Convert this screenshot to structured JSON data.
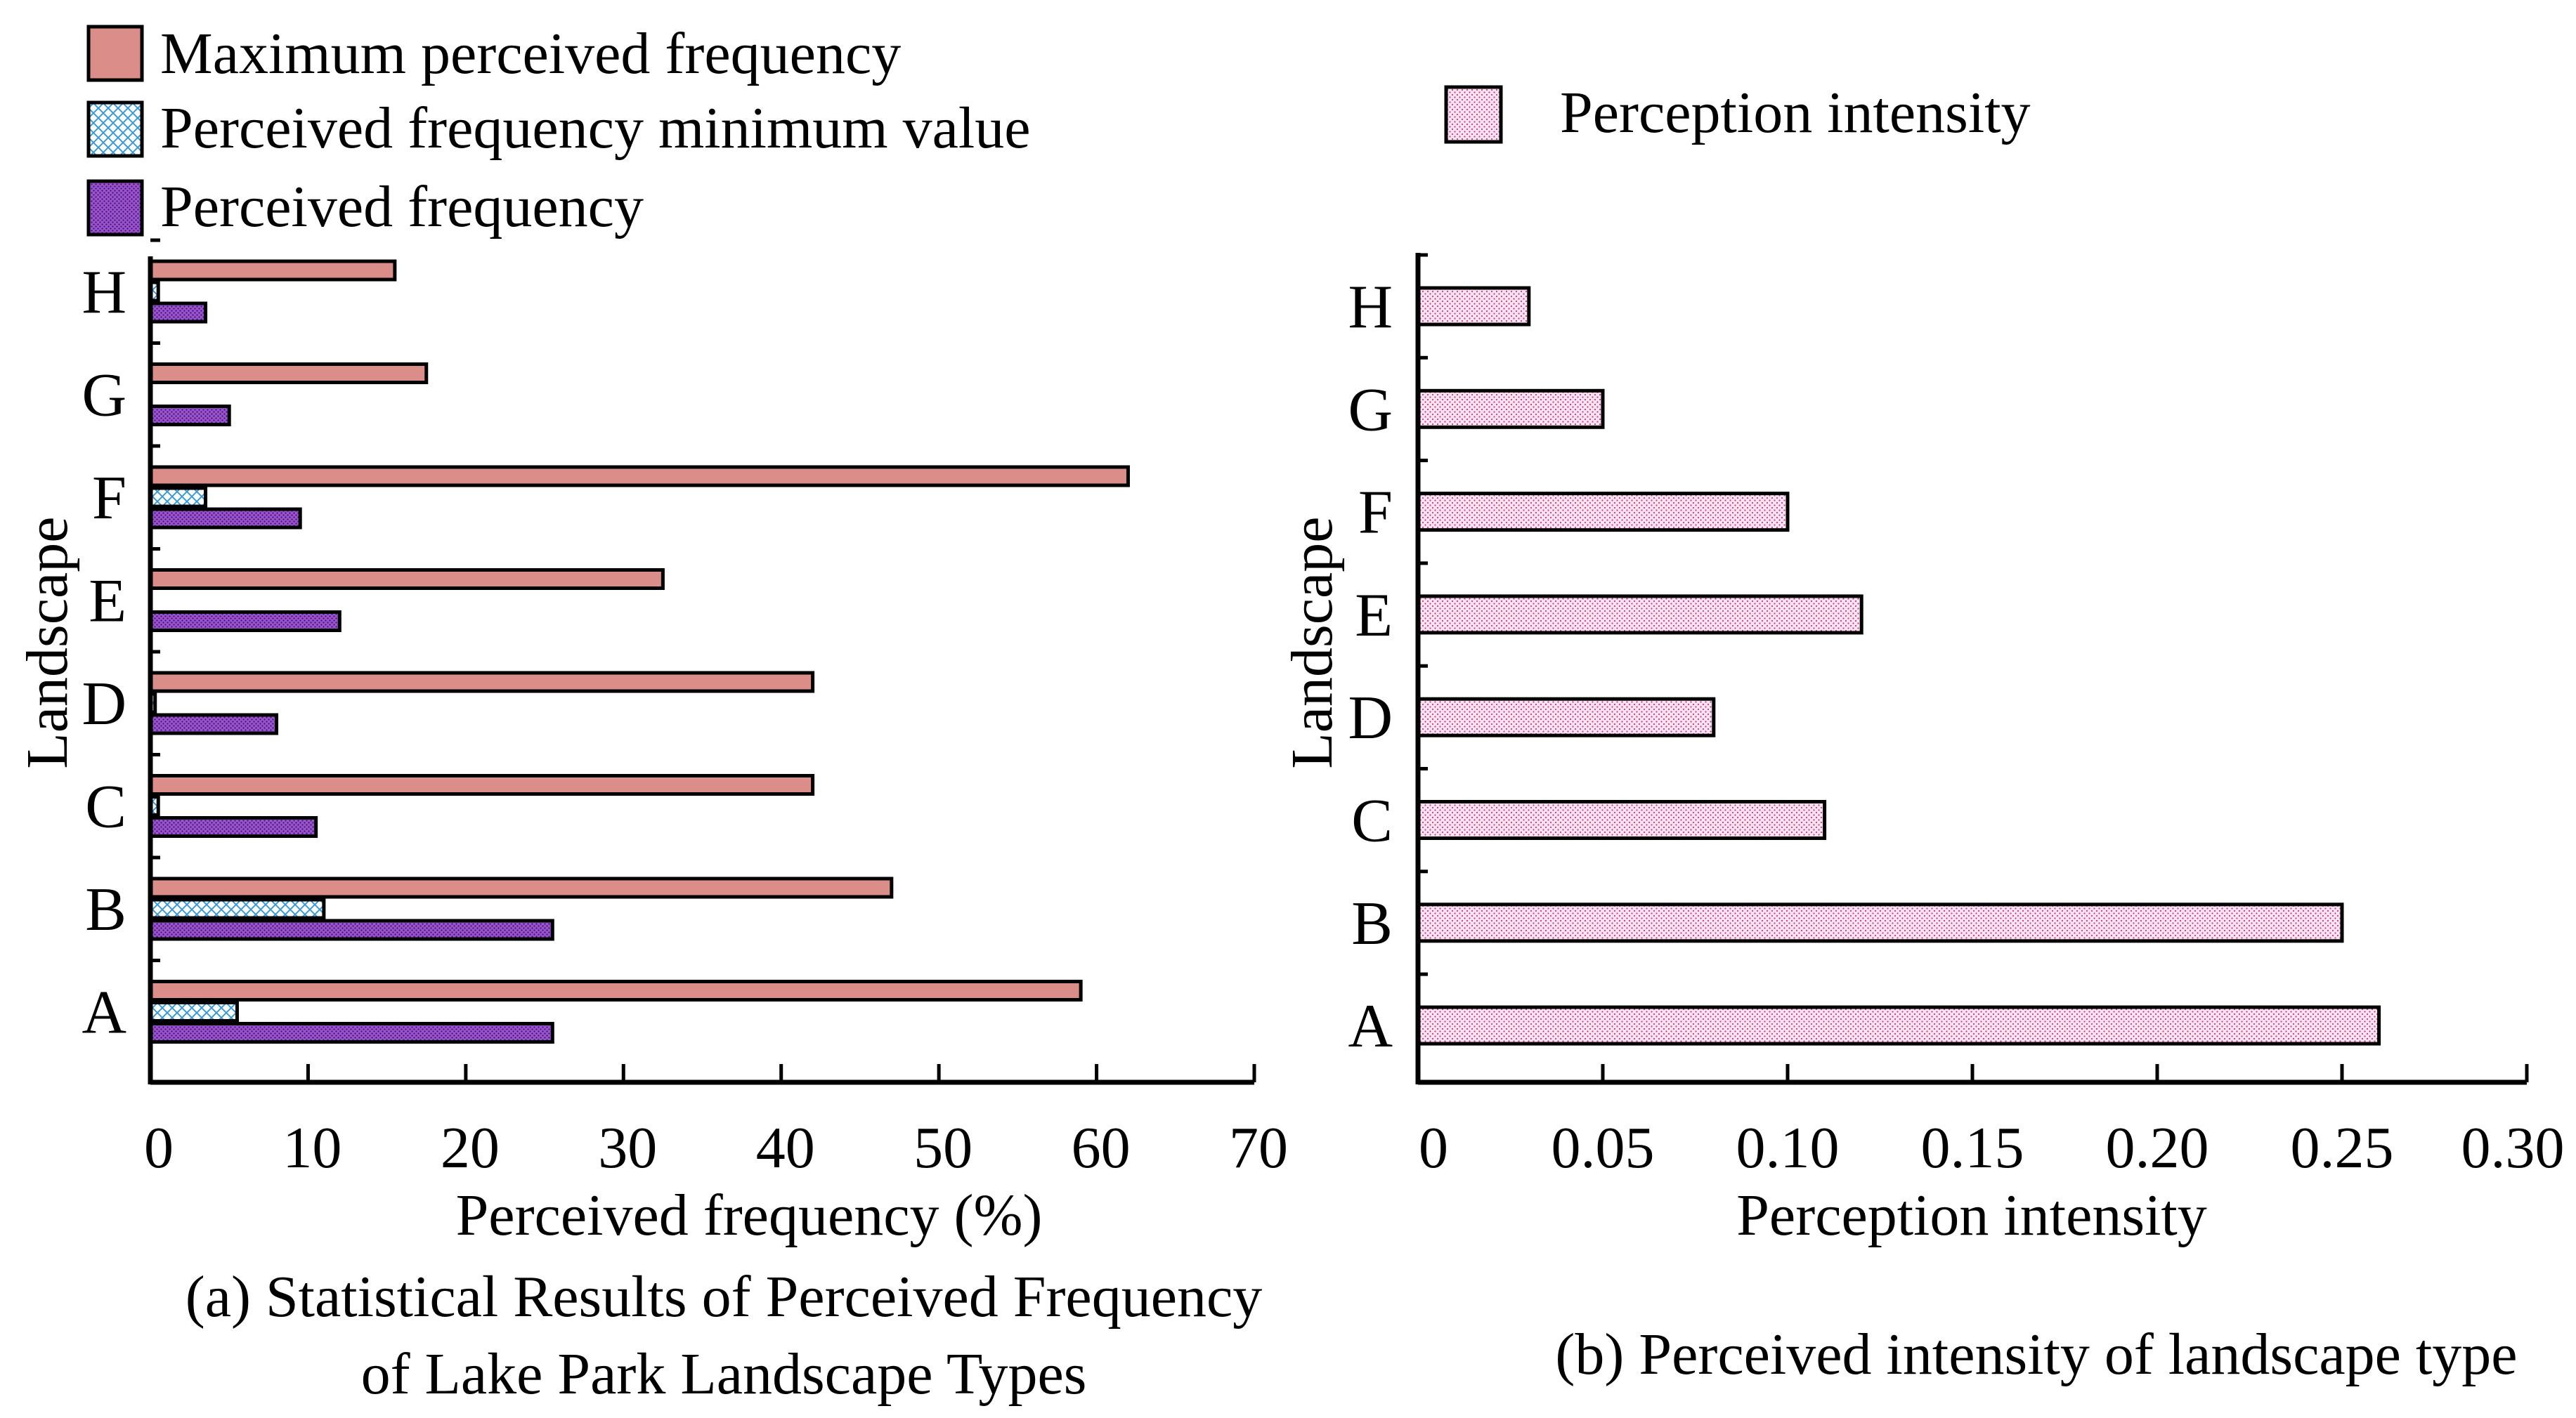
{
  "colors": {
    "max_fill": "#db8e89",
    "min_pattern_line": "#3a9ad9",
    "freq_fill": "#9b52cf",
    "freq_dot": "#3a1262",
    "intensity_fill": "#fbe3f1",
    "intensity_dot": "#c23c84",
    "axis": "#000000"
  },
  "chart_data": [
    {
      "type": "bar",
      "orientation": "horizontal",
      "title": "(a) Statistical Results of Perceived Frequency of Lake Park Landscape Types",
      "title_lines": [
        "(a) Statistical Results of Perceived Frequency",
        "of Lake Park Landscape Types"
      ],
      "xlabel": "Perceived frequency (%)",
      "ylabel": "Landscape",
      "xlim": [
        0,
        70
      ],
      "xticks": [
        "0",
        "10",
        "20",
        "30",
        "40",
        "50",
        "60",
        "70"
      ],
      "categories": [
        "H",
        "G",
        "F",
        "E",
        "D",
        "C",
        "B",
        "A"
      ],
      "series": [
        {
          "name": "Maximum perceived frequency",
          "values": [
            15.5,
            17.5,
            62,
            32.5,
            42,
            42,
            47,
            59
          ]
        },
        {
          "name": "Perceived frequency minimum value",
          "values": [
            0.5,
            0,
            3.5,
            0,
            0.3,
            0.5,
            11,
            5.5
          ]
        },
        {
          "name": "Perceived frequency",
          "values": [
            3.5,
            5,
            9.5,
            12,
            8,
            10.5,
            25.5,
            25.5
          ]
        }
      ],
      "legend": "top-left"
    },
    {
      "type": "bar",
      "orientation": "horizontal",
      "title": "(b) Perceived intensity of landscape type",
      "xlabel": "Perception intensity",
      "ylabel": "Landscape",
      "xlim": [
        0,
        0.3
      ],
      "xticks": [
        "0",
        "0.05",
        "0.10",
        "0.15",
        "0.20",
        "0.25",
        "0.30"
      ],
      "categories": [
        "H",
        "G",
        "F",
        "E",
        "D",
        "C",
        "B",
        "A"
      ],
      "series": [
        {
          "name": "Perception intensity",
          "values": [
            0.03,
            0.05,
            0.1,
            0.12,
            0.08,
            0.11,
            0.25,
            0.26
          ]
        }
      ],
      "legend": "top"
    }
  ]
}
